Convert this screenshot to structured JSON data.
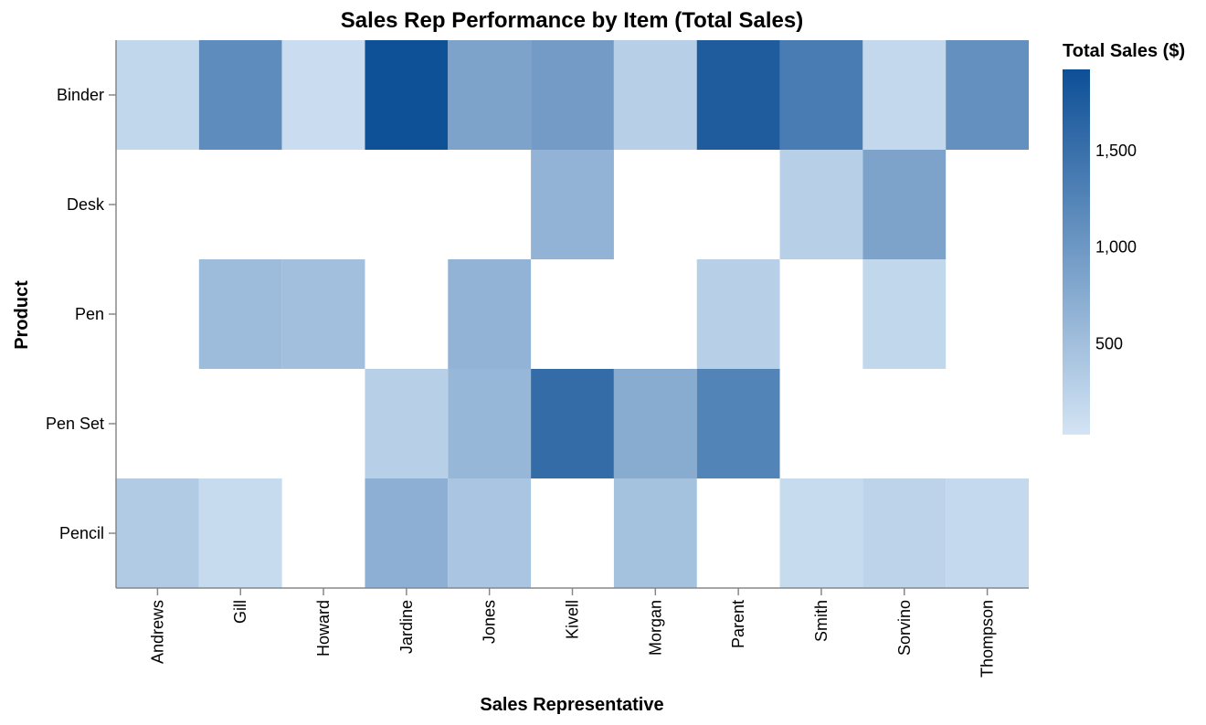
{
  "chart_data": {
    "type": "heatmap",
    "title": "Sales Rep Performance by Item (Total Sales)",
    "xlabel": "Sales Representative",
    "ylabel": "Product",
    "x_categories": [
      "Andrews",
      "Gill",
      "Howard",
      "Jardine",
      "Jones",
      "Kivell",
      "Morgan",
      "Parent",
      "Smith",
      "Sorvino",
      "Thompson"
    ],
    "y_categories": [
      "Binder",
      "Desk",
      "Pen",
      "Pen Set",
      "Pencil"
    ],
    "values": [
      [
        200,
        1150,
        120,
        1900,
        850,
        950,
        300,
        1750,
        1350,
        180,
        1100
      ],
      [
        null,
        null,
        null,
        null,
        null,
        650,
        null,
        null,
        300,
        850,
        null
      ],
      [
        null,
        550,
        500,
        null,
        650,
        null,
        null,
        300,
        null,
        200,
        null
      ],
      [
        null,
        null,
        null,
        300,
        600,
        1550,
        750,
        1250,
        null,
        null,
        null
      ],
      [
        350,
        150,
        null,
        700,
        420,
        null,
        480,
        null,
        150,
        250,
        170
      ]
    ],
    "color_scale": {
      "title": "Total Sales ($)",
      "domain": [
        30,
        1920
      ],
      "range": [
        "#d3e4f4",
        "#0d4f96"
      ],
      "ticks": [
        500,
        1000,
        1500
      ],
      "tick_labels": [
        "500",
        "1,000",
        "1,500"
      ]
    },
    "empty_color": "#ffffff",
    "legend_position": "right",
    "grid": false
  }
}
